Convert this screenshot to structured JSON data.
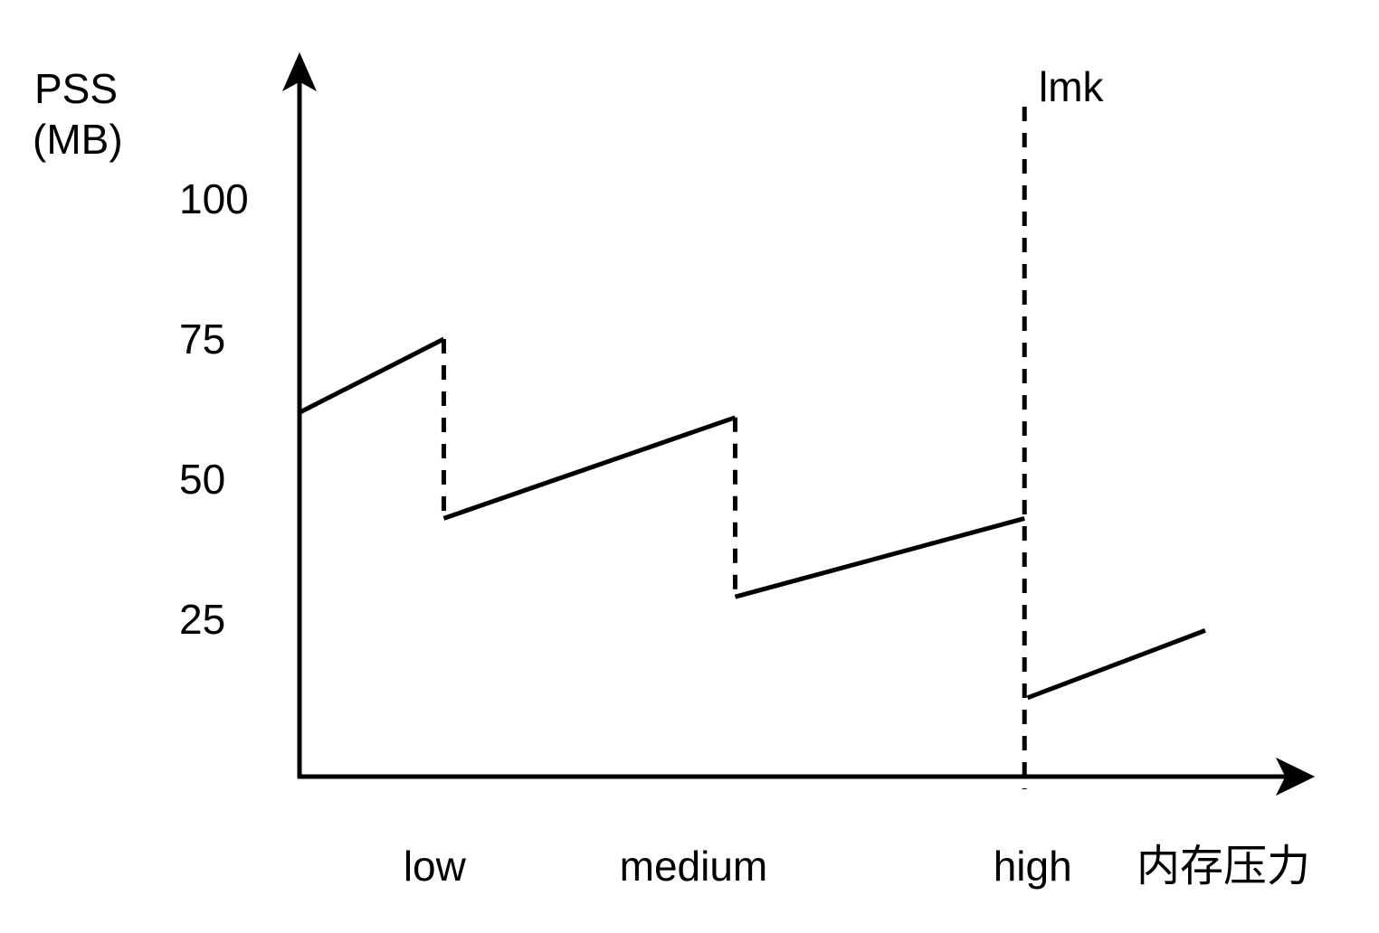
{
  "colors": {
    "background": "#ffffff",
    "ink": "#000000"
  },
  "chart_data": {
    "type": "line",
    "title": "",
    "ylabel_lines": [
      "PSS",
      "(MB)"
    ],
    "xlabel": "内存压力",
    "ylim": [
      0,
      120
    ],
    "grid": false,
    "legend": "none",
    "y_ticks": [
      100,
      75,
      50,
      25
    ],
    "categories": [
      {
        "label": "low",
        "x": 0.134
      },
      {
        "label": "medium",
        "x": 0.389
      },
      {
        "label": "high",
        "x": 0.723
      }
    ],
    "lmk_line": {
      "label": "lmk",
      "x": 0.715
    },
    "series": [
      {
        "name": "pss-sawtooth",
        "segments": [
          {
            "from": {
              "x": 0.002,
              "v": 62
            },
            "to": {
              "x": 0.143,
              "v": 75
            },
            "style": "solid"
          },
          {
            "from": {
              "x": 0.143,
              "v": 75
            },
            "to": {
              "x": 0.143,
              "v": 43
            },
            "style": "dashed"
          },
          {
            "from": {
              "x": 0.143,
              "v": 43
            },
            "to": {
              "x": 0.43,
              "v": 61
            },
            "style": "solid"
          },
          {
            "from": {
              "x": 0.43,
              "v": 61
            },
            "to": {
              "x": 0.43,
              "v": 29
            },
            "style": "dashed"
          },
          {
            "from": {
              "x": 0.43,
              "v": 29
            },
            "to": {
              "x": 0.715,
              "v": 43
            },
            "style": "solid"
          },
          {
            "from": {
              "x": 0.718,
              "v": 11
            },
            "to": {
              "x": 0.893,
              "v": 23
            },
            "style": "solid"
          }
        ]
      }
    ]
  }
}
